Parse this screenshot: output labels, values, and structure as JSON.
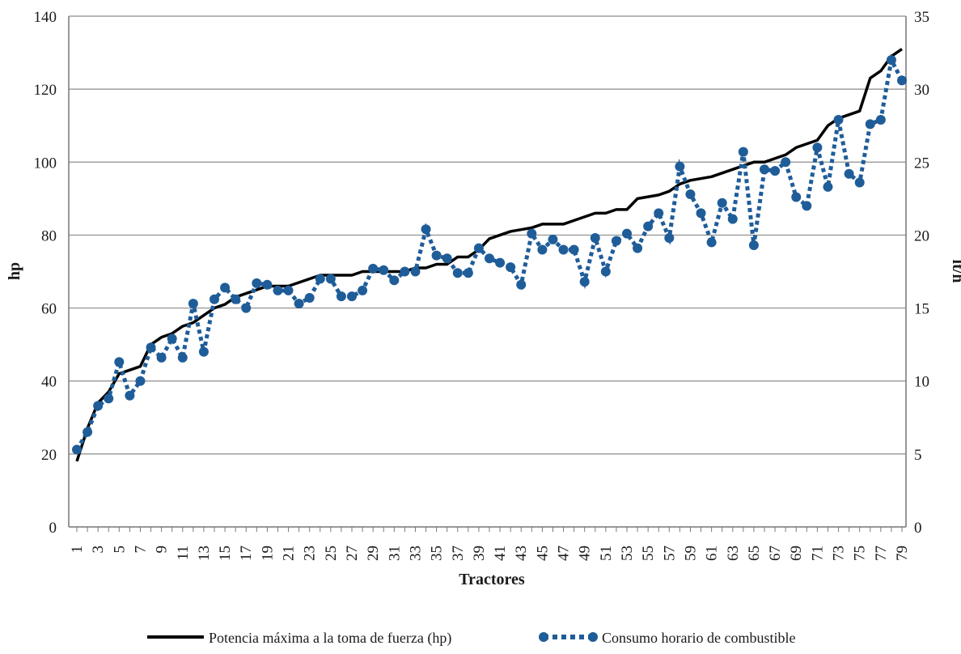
{
  "chart_data": {
    "type": "line",
    "title": "",
    "xlabel": "Tractores",
    "ylabel": "hp",
    "y2label": "lt/h",
    "ylim": [
      0,
      140
    ],
    "y2lim": [
      0,
      35
    ],
    "yticks": [
      "0",
      "20",
      "40",
      "60",
      "80",
      "100",
      "120",
      "140"
    ],
    "y2ticks": [
      "0",
      "5",
      "10",
      "15",
      "20",
      "25",
      "30",
      "35"
    ],
    "x": [
      1,
      2,
      3,
      4,
      5,
      6,
      7,
      8,
      9,
      10,
      11,
      12,
      13,
      14,
      15,
      16,
      17,
      18,
      19,
      20,
      21,
      22,
      23,
      24,
      25,
      26,
      27,
      28,
      29,
      30,
      31,
      32,
      33,
      34,
      35,
      36,
      37,
      38,
      39,
      40,
      41,
      42,
      43,
      44,
      45,
      46,
      47,
      48,
      49,
      50,
      51,
      52,
      53,
      54,
      55,
      56,
      57,
      58,
      59,
      60,
      61,
      62,
      63,
      64,
      65,
      66,
      67,
      68,
      69,
      70,
      71,
      72,
      73,
      74,
      75,
      76,
      77,
      78,
      79
    ],
    "xtick_labels": [
      "1",
      "3",
      "5",
      "7",
      "9",
      "11",
      "13",
      "15",
      "17",
      "19",
      "21",
      "23",
      "25",
      "27",
      "29",
      "31",
      "33",
      "35",
      "37",
      "39",
      "41",
      "43",
      "45",
      "47",
      "49",
      "51",
      "53",
      "55",
      "57",
      "59",
      "61",
      "63",
      "65",
      "67",
      "69",
      "71",
      "73",
      "75",
      "77",
      "79"
    ],
    "grid": true,
    "legend_position": "bottom",
    "series": [
      {
        "name": "Potencia máxima a la toma de fuerza (hp)",
        "axis": "left",
        "color": "#000000",
        "style": "solid",
        "values": [
          18,
          27,
          34,
          37,
          42,
          43,
          44,
          50,
          52,
          53,
          55,
          56,
          58,
          60,
          61,
          63,
          64,
          65,
          66,
          66,
          66,
          67,
          68,
          69,
          69,
          69,
          69,
          70,
          70,
          70,
          70,
          70,
          71,
          71,
          72,
          72,
          74,
          74,
          76,
          79,
          80,
          81,
          81.5,
          82,
          83,
          83,
          83,
          84,
          85,
          86,
          86,
          87,
          87,
          90,
          90.5,
          91,
          92,
          94,
          95,
          95.5,
          96,
          97,
          98,
          99,
          100,
          100,
          101,
          102,
          104,
          105,
          106,
          110,
          112,
          113,
          114,
          123,
          125,
          129,
          131
        ]
      },
      {
        "name": "Consumo horario de combustible",
        "axis": "right",
        "color": "#1f5d99",
        "style": "dotted",
        "values": [
          5.3,
          6.5,
          8.3,
          8.8,
          11.3,
          9.0,
          10.0,
          12.3,
          11.6,
          12.9,
          11.6,
          15.3,
          12.0,
          15.6,
          16.4,
          15.6,
          15.0,
          16.7,
          16.6,
          16.2,
          16.2,
          15.3,
          15.7,
          17.0,
          17.0,
          15.8,
          15.8,
          16.2,
          17.7,
          17.6,
          16.9,
          17.5,
          17.5,
          20.4,
          18.6,
          18.4,
          17.4,
          17.4,
          19.1,
          18.4,
          18.1,
          17.8,
          16.6,
          20.1,
          19.0,
          19.7,
          19.0,
          19.0,
          16.8,
          19.8,
          17.5,
          19.6,
          20.1,
          19.1,
          20.6,
          21.5,
          19.8,
          24.7,
          22.8,
          21.5,
          19.5,
          22.2,
          21.1,
          25.7,
          19.3,
          24.5,
          24.4,
          25.0,
          22.6,
          22.0,
          26.0,
          23.3,
          27.9,
          24.2,
          23.6,
          27.6,
          27.9,
          32.0,
          30.6
        ]
      }
    ]
  }
}
